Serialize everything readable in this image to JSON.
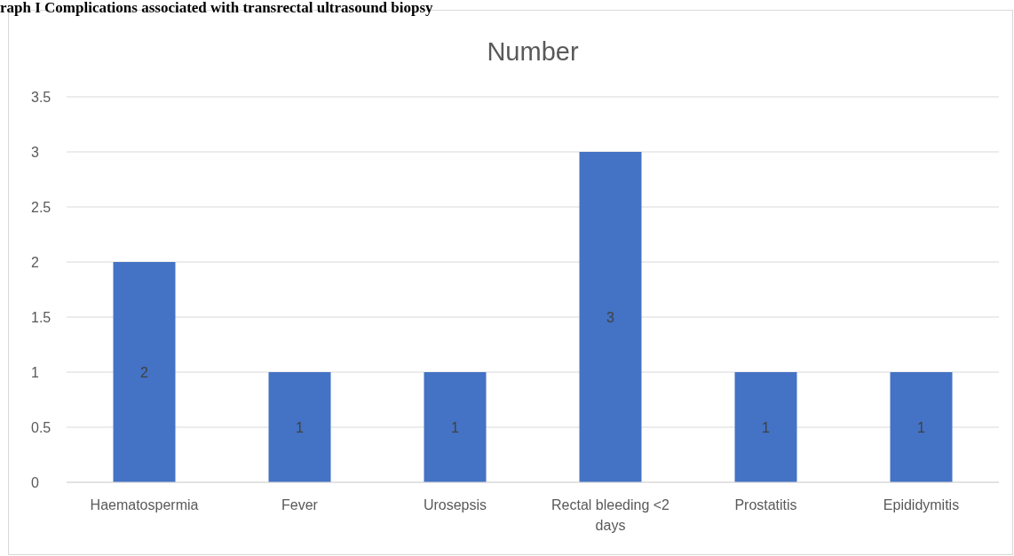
{
  "chart_data": {
    "type": "bar",
    "title": "raph I Complications associated with transrectal ultrasound biopsy",
    "subtitle": "Number",
    "categories": [
      "Haematospermia",
      "Fever",
      "Urosepsis",
      "Rectal bleeding <2 days",
      "Prostatitis",
      "Epididymitis"
    ],
    "values": [
      2,
      1,
      1,
      3,
      1,
      1
    ],
    "color": "#4472c4",
    "data_labels": true,
    "ylim": [
      0,
      3.5
    ],
    "yticks": [
      0,
      0.5,
      1,
      1.5,
      2,
      2.5,
      3,
      3.5
    ],
    "grid": "y"
  }
}
